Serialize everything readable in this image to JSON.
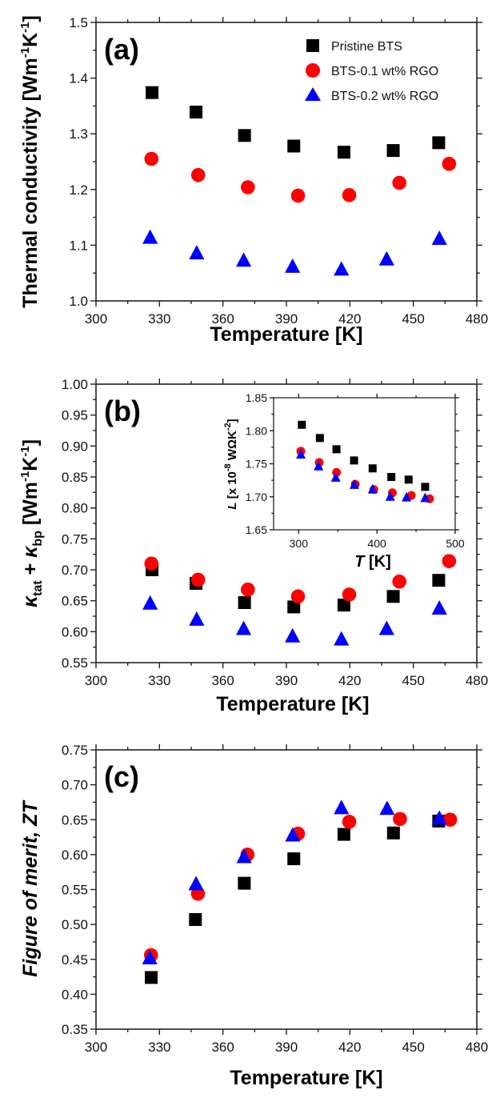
{
  "series_styles": [
    {
      "name": "Pristine BTS",
      "marker": "square",
      "color": "#000000"
    },
    {
      "name": "BTS-0.1 wt% RGO",
      "marker": "circle",
      "color": "#ff0000"
    },
    {
      "name": "BTS-0.2 wt% RGO",
      "marker": "triangle",
      "color": "#0000ff"
    }
  ],
  "chart_data": [
    {
      "id": "a",
      "type": "scatter",
      "panel_label": "(a)",
      "title": "",
      "xlabel": "Temperature [K]",
      "ylabel": "Thermal conductivity [Wm-1K-1]",
      "ylabel_parts": {
        "main": "Thermal conductivity [Wm",
        "sup1": "-1",
        "mid": "K",
        "sup2": "-1",
        "end": "]"
      },
      "xlim": [
        300,
        480
      ],
      "ylim": [
        1.0,
        1.5
      ],
      "xticks": [
        300,
        330,
        360,
        390,
        420,
        450,
        480
      ],
      "xtick_labels": [
        "300",
        "330",
        "360",
        "390",
        "420",
        "450",
        "480"
      ],
      "yticks": [
        1.0,
        1.1,
        1.2,
        1.3,
        1.4,
        1.5
      ],
      "ytick_labels": [
        "1.0",
        "1.1",
        "1.2",
        "1.3",
        "1.4",
        "1.5"
      ],
      "grid": false,
      "legend": {
        "placement": "top-right",
        "entries": [
          "Pristine BTS",
          "BTS-0.1 wt% RGO",
          "BTS-0.2 wt% RGO"
        ]
      },
      "series": [
        {
          "name": "Pristine BTS",
          "x": [
            326.5,
            347.3,
            370.2,
            393.5,
            417.2,
            440.5,
            462.0
          ],
          "y": [
            1.374,
            1.339,
            1.297,
            1.278,
            1.267,
            1.27,
            1.284
          ]
        },
        {
          "name": "BTS-0.1 wt% RGO",
          "x": [
            326.2,
            348.3,
            371.8,
            395.5,
            419.7,
            443.4,
            466.9
          ],
          "y": [
            1.255,
            1.226,
            1.204,
            1.189,
            1.19,
            1.212,
            1.246
          ]
        },
        {
          "name": "BTS-0.2 wt% RGO",
          "x": [
            325.6,
            347.6,
            369.8,
            392.9,
            416.0,
            437.4,
            462.3
          ],
          "y": [
            1.114,
            1.086,
            1.073,
            1.062,
            1.057,
            1.075,
            1.112
          ]
        }
      ]
    },
    {
      "id": "b",
      "type": "scatter",
      "panel_label": "(b)",
      "title": "",
      "xlabel": "Temperature [K]",
      "ylabel": "κtat + κbp [Wm-1K-1]",
      "ylabel_parts": {
        "kappa": "κ",
        "sub1": "tat",
        "plus": " + ",
        "sub2": "bp",
        "unit_main": " [Wm",
        "sup1": "-1",
        "mid": "K",
        "sup2": "-1",
        "end": "]"
      },
      "xlim": [
        300,
        480
      ],
      "ylim": [
        0.55,
        1.0
      ],
      "xticks": [
        300,
        330,
        360,
        390,
        420,
        450,
        480
      ],
      "xtick_labels": [
        "300",
        "330",
        "360",
        "390",
        "420",
        "450",
        "480"
      ],
      "yticks": [
        0.55,
        0.6,
        0.65,
        0.7,
        0.75,
        0.8,
        0.85,
        0.9,
        0.95,
        1.0
      ],
      "ytick_labels": [
        "0.55",
        "0.60",
        "0.65",
        "0.70",
        "0.75",
        "0.80",
        "0.85",
        "0.90",
        "0.95",
        "1.00"
      ],
      "grid": false,
      "series": [
        {
          "name": "Pristine BTS",
          "x": [
            326.5,
            347.3,
            370.2,
            393.5,
            417.2,
            440.5,
            462.0
          ],
          "y": [
            0.7,
            0.678,
            0.647,
            0.64,
            0.643,
            0.657,
            0.683
          ]
        },
        {
          "name": "BTS-0.1 wt% RGO",
          "x": [
            326.2,
            348.3,
            371.8,
            395.5,
            419.7,
            443.4,
            466.9
          ],
          "y": [
            0.71,
            0.684,
            0.668,
            0.657,
            0.66,
            0.681,
            0.714
          ]
        },
        {
          "name": "BTS-0.2 wt% RGO",
          "x": [
            325.6,
            347.6,
            369.8,
            392.9,
            416.0,
            437.4,
            462.3
          ],
          "y": [
            0.646,
            0.62,
            0.605,
            0.593,
            0.588,
            0.605,
            0.638
          ]
        }
      ],
      "inset": {
        "type": "scatter",
        "xlabel": "T [K]",
        "xlabel_parts": {
          "var": "T",
          "unit": " [K]"
        },
        "ylabel": "L [x 10-8 WΩK-2]",
        "ylabel_parts": {
          "var": "L",
          "pre": " [x 10",
          "sup1": "-8",
          "mid": " WΩK",
          "sup2": "-2",
          "end": "]"
        },
        "xlim": [
          268,
          500
        ],
        "ylim": [
          1.65,
          1.85
        ],
        "xticks": [
          300,
          400,
          500
        ],
        "xtick_labels": [
          "300",
          "400",
          "500"
        ],
        "yticks": [
          1.65,
          1.7,
          1.75,
          1.8,
          1.85
        ],
        "ytick_labels": [
          "1.65",
          "1.70",
          "1.75",
          "1.80",
          "1.85"
        ],
        "series": [
          {
            "name": "Pristine BTS",
            "x": [
              304.1,
              327.1,
              348.3,
              370.8,
              394.5,
              418.4,
              440.5,
              461.6
            ],
            "y": [
              1.809,
              1.789,
              1.772,
              1.755,
              1.743,
              1.73,
              1.726,
              1.715
            ]
          },
          {
            "name": "BTS-0.1 wt% RGO",
            "x": [
              302.8,
              326.3,
              348.4,
              372.3,
              396.1,
              419.7,
              443.9,
              467.3
            ],
            "y": [
              1.769,
              1.752,
              1.737,
              1.719,
              1.711,
              1.706,
              1.702,
              1.697
            ]
          },
          {
            "name": "BTS-0.2 wt% RGO",
            "x": [
              302.8,
              325.4,
              347.4,
              371.2,
              394.5,
              417.0,
              437.8,
              461.6
            ],
            "y": [
              1.764,
              1.746,
              1.729,
              1.718,
              1.711,
              1.7,
              1.699,
              1.698
            ]
          }
        ]
      }
    },
    {
      "id": "c",
      "type": "scatter",
      "panel_label": "(c)",
      "title": "",
      "xlabel": "Temperature [K]",
      "ylabel": "Figure of merit, ZT",
      "xlim": [
        300,
        480
      ],
      "ylim": [
        0.35,
        0.75
      ],
      "xticks": [
        300,
        330,
        360,
        390,
        420,
        450,
        480
      ],
      "xtick_labels": [
        "300",
        "330",
        "360",
        "390",
        "420",
        "450",
        "480"
      ],
      "yticks": [
        0.35,
        0.4,
        0.45,
        0.5,
        0.55,
        0.6,
        0.65,
        0.7,
        0.75
      ],
      "ytick_labels": [
        "0.35",
        "0.40",
        "0.45",
        "0.50",
        "0.55",
        "0.60",
        "0.65",
        "0.70",
        "0.75"
      ],
      "grid": false,
      "series": [
        {
          "name": "Pristine BTS",
          "x": [
            326.1,
            347.0,
            370.1,
            393.5,
            417.2,
            440.6,
            462.0
          ],
          "y": [
            0.424,
            0.507,
            0.559,
            0.594,
            0.629,
            0.631,
            0.648
          ]
        },
        {
          "name": "BTS-0.1 wt% RGO",
          "x": [
            326.0,
            348.2,
            371.6,
            395.5,
            419.7,
            443.7,
            467.4
          ],
          "y": [
            0.456,
            0.544,
            0.6,
            0.63,
            0.647,
            0.651,
            0.65
          ]
        },
        {
          "name": "BTS-0.2 wt% RGO",
          "x": [
            325.4,
            347.3,
            370.0,
            393.0,
            416.0,
            437.6,
            462.3
          ],
          "y": [
            0.452,
            0.558,
            0.597,
            0.628,
            0.667,
            0.666,
            0.652
          ]
        }
      ]
    }
  ]
}
